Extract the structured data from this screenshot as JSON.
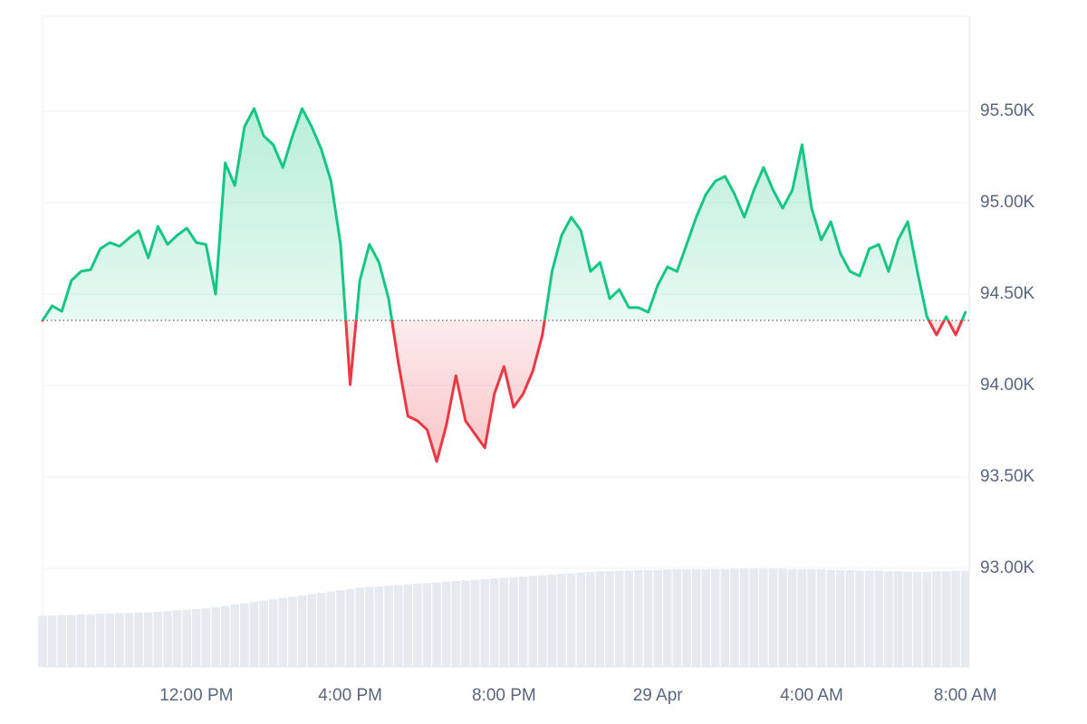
{
  "chart_data": {
    "type": "line",
    "x": [
      0,
      0.25,
      0.5,
      0.75,
      1,
      1.25,
      1.5,
      1.75,
      2,
      2.25,
      2.5,
      2.75,
      3,
      3.25,
      3.5,
      3.75,
      4,
      4.25,
      4.5,
      4.75,
      5,
      5.25,
      5.5,
      5.75,
      6,
      6.25,
      6.5,
      6.75,
      7,
      7.25,
      7.5,
      7.75,
      8,
      8.25,
      8.5,
      8.75,
      9,
      9.25,
      9.5,
      9.75,
      10,
      10.25,
      10.5,
      10.75,
      11,
      11.25,
      11.5,
      11.75,
      12,
      12.25,
      12.5,
      12.75,
      13,
      13.25,
      13.5,
      13.75,
      14,
      14.25,
      14.5,
      14.75,
      15,
      15.25,
      15.5,
      15.75,
      16,
      16.25,
      16.5,
      16.75,
      17,
      17.25,
      17.5,
      17.75,
      18,
      18.25,
      18.5,
      18.75,
      19,
      19.25,
      19.5,
      19.75,
      20,
      20.25,
      20.5,
      20.75,
      21,
      21.25,
      21.5,
      21.75,
      22,
      22.25,
      22.5,
      22.75,
      23,
      23.25,
      23.5,
      23.75,
      24
    ],
    "values": [
      94356,
      94436,
      94406,
      94574,
      94624,
      94634,
      94748,
      94782,
      94762,
      94807,
      94847,
      94698,
      94871,
      94772,
      94822,
      94861,
      94782,
      94772,
      94500,
      95218,
      95094,
      95416,
      95515,
      95366,
      95317,
      95193,
      95366,
      95515,
      95416,
      95292,
      95119,
      94772,
      94005,
      94574,
      94772,
      94673,
      94475,
      94129,
      93832,
      93807,
      93758,
      93584,
      93782,
      94054,
      93807,
      93733,
      93659,
      93955,
      94104,
      93881,
      93955,
      94079,
      94277,
      94624,
      94822,
      94921,
      94847,
      94624,
      94673,
      94475,
      94525,
      94426,
      94426,
      94401,
      94550,
      94649,
      94624,
      94772,
      94921,
      95045,
      95119,
      95144,
      95045,
      94921,
      95069,
      95193,
      95069,
      94970,
      95069,
      95317,
      94970,
      94797,
      94896,
      94723,
      94624,
      94599,
      94748,
      94772,
      94624,
      94797,
      94896,
      94624,
      94376,
      94277,
      94376,
      94277,
      94401
    ],
    "volume": [
      7.9,
      7.9,
      8,
      8,
      8.1,
      8.1,
      8.2,
      8.2,
      8.3,
      8.3,
      8.4,
      8.4,
      8.5,
      8.6,
      8.7,
      8.8,
      8.9,
      9,
      9.2,
      9.4,
      9.6,
      9.8,
      10,
      10.2,
      10.4,
      10.6,
      10.8,
      11,
      11.2,
      11.4,
      11.6,
      11.8,
      12,
      12.2,
      12.3,
      12.4,
      12.5,
      12.6,
      12.7,
      12.8,
      12.9,
      13,
      13.1,
      13.2,
      13.3,
      13.4,
      13.5,
      13.6,
      13.7,
      13.8,
      13.9,
      14,
      14.1,
      14.2,
      14.3,
      14.4,
      14.5,
      14.6,
      14.7,
      14.7,
      14.8,
      14.8,
      14.9,
      14.9,
      14.9,
      15,
      15,
      15,
      15,
      15,
      15,
      15,
      15.1,
      15.1,
      15.1,
      15.1,
      15.1,
      15.1,
      15,
      15,
      15,
      15,
      14.9,
      14.9,
      14.9,
      14.8,
      14.8,
      14.8,
      14.7,
      14.7,
      14.6,
      14.6,
      14.6,
      14.7,
      14.7,
      14.8,
      14.8
    ],
    "baseline": 94356,
    "ylim": [
      92460,
      96020
    ],
    "y2lim": [
      0,
      100
    ],
    "xlim": [
      0,
      24.1
    ],
    "yticks": [
      {
        "value": 93000,
        "label": "93.00K"
      },
      {
        "value": 93500,
        "label": "93.50K"
      },
      {
        "value": 94000,
        "label": "94.00K"
      },
      {
        "value": 94500,
        "label": "94.50K"
      },
      {
        "value": 95000,
        "label": "95.00K"
      },
      {
        "value": 95500,
        "label": "95.50K"
      }
    ],
    "xticks": [
      {
        "value": 4,
        "label": "12:00 PM"
      },
      {
        "value": 8,
        "label": "4:00 PM"
      },
      {
        "value": 12,
        "label": "8:00 PM"
      },
      {
        "value": 16,
        "label": "29 Apr"
      },
      {
        "value": 20,
        "label": "4:00 AM"
      },
      {
        "value": 24,
        "label": "8:00 AM"
      }
    ],
    "up_color": "#16c784",
    "down_color": "#ea3943",
    "volume_color": "#e7ebf0",
    "grid": true
  }
}
